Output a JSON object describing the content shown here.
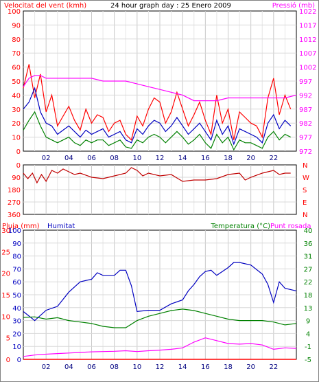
{
  "chart_data": [
    {
      "type": "line",
      "title": "24 hour graph day : 25 Enero 2009",
      "left_axis_label": "Velocitat del vent (kmh)",
      "right_axis_label": "Pressió (mb)",
      "x_ticks": [
        "02",
        "04",
        "06",
        "08",
        "10",
        "12",
        "14",
        "16",
        "18",
        "20",
        "22"
      ],
      "x_range": [
        0,
        24
      ],
      "left_ticks": [
        "0",
        "10",
        "20",
        "30",
        "40",
        "50",
        "60",
        "70",
        "80",
        "90",
        "100"
      ],
      "left_range": [
        0,
        100
      ],
      "right_ticks": [
        "972",
        "977",
        "982",
        "987",
        "992",
        "997",
        "1002",
        "1007",
        "1012",
        "1017",
        "1022"
      ],
      "right_range": [
        972,
        1022
      ],
      "grid": true,
      "colors": {
        "gust": "#ff0000",
        "average": "#0000c0",
        "minimum": "#008000",
        "pressure": "#ff00ff",
        "left_text": "#ff0000",
        "right_text": "#ff00ff"
      },
      "series": [
        {
          "key": "gust",
          "x": [
            0,
            0.5,
            1,
            1.5,
            2,
            2.5,
            3,
            3.5,
            4,
            4.5,
            5,
            5.5,
            6,
            6.5,
            7,
            7.5,
            8,
            8.5,
            9,
            9.5,
            10,
            10.5,
            11,
            11.5,
            12,
            12.5,
            13,
            13.5,
            14,
            14.5,
            15,
            15.5,
            16,
            16.5,
            17,
            17.5,
            18,
            18.5,
            19,
            19.5,
            20,
            20.5,
            21,
            21.5,
            22,
            22.5,
            23,
            23.5
          ],
          "values": [
            45,
            62,
            38,
            55,
            28,
            40,
            18,
            25,
            32,
            22,
            15,
            30,
            20,
            26,
            24,
            14,
            20,
            22,
            12,
            8,
            25,
            18,
            30,
            38,
            35,
            20,
            28,
            42,
            30,
            18,
            26,
            35,
            22,
            12,
            40,
            20,
            30,
            8,
            28,
            24,
            20,
            18,
            10,
            38,
            52,
            26,
            40,
            30
          ]
        },
        {
          "key": "average",
          "x": [
            0,
            0.5,
            1,
            1.5,
            2,
            2.5,
            3,
            3.5,
            4,
            4.5,
            5,
            5.5,
            6,
            6.5,
            7,
            7.5,
            8,
            8.5,
            9,
            9.5,
            10,
            10.5,
            11,
            11.5,
            12,
            12.5,
            13,
            13.5,
            14,
            14.5,
            15,
            15.5,
            16,
            16.5,
            17,
            17.5,
            18,
            18.5,
            19,
            19.5,
            20,
            20.5,
            21,
            21.5,
            22,
            22.5,
            23,
            23.5
          ],
          "values": [
            30,
            35,
            45,
            28,
            20,
            18,
            12,
            15,
            18,
            14,
            10,
            15,
            12,
            14,
            16,
            10,
            12,
            14,
            8,
            6,
            16,
            12,
            18,
            22,
            20,
            14,
            18,
            24,
            18,
            12,
            16,
            20,
            14,
            8,
            22,
            12,
            18,
            5,
            16,
            14,
            12,
            10,
            6,
            20,
            26,
            16,
            22,
            18
          ]
        },
        {
          "key": "minimum",
          "x": [
            0,
            0.5,
            1,
            1.5,
            2,
            2.5,
            3,
            3.5,
            4,
            4.5,
            5,
            5.5,
            6,
            6.5,
            7,
            7.5,
            8,
            8.5,
            9,
            9.5,
            10,
            10.5,
            11,
            11.5,
            12,
            12.5,
            13,
            13.5,
            14,
            14.5,
            15,
            15.5,
            16,
            16.5,
            17,
            17.5,
            18,
            18.5,
            19,
            19.5,
            20,
            20.5,
            21,
            21.5,
            22,
            22.5,
            23,
            23.5
          ],
          "values": [
            15,
            22,
            28,
            18,
            10,
            8,
            6,
            8,
            10,
            6,
            4,
            8,
            6,
            8,
            8,
            4,
            6,
            8,
            3,
            2,
            8,
            6,
            10,
            12,
            10,
            6,
            10,
            14,
            10,
            5,
            8,
            12,
            6,
            2,
            12,
            6,
            10,
            1,
            8,
            6,
            6,
            4,
            2,
            10,
            14,
            8,
            12,
            10
          ]
        },
        {
          "key": "pressure",
          "x": [
            0,
            0.5,
            1,
            1.5,
            2,
            3,
            4,
            5,
            6,
            7,
            8,
            9,
            10,
            11,
            12,
            13,
            14,
            15,
            16,
            17,
            18,
            19,
            20,
            21,
            22,
            23,
            24
          ],
          "values": [
            995,
            998,
            999,
            999,
            998,
            998,
            998,
            998,
            998,
            997,
            997,
            997,
            996,
            995,
            994,
            993,
            992,
            990,
            990,
            990,
            991,
            991,
            991,
            991,
            991,
            991,
            992
          ]
        }
      ]
    },
    {
      "type": "line",
      "title": "",
      "left_ticks": [
        "360",
        "270",
        "180",
        "90",
        "0"
      ],
      "left_range": [
        0,
        360
      ],
      "right_ticks": [
        "N",
        "W",
        "S",
        "E",
        "N"
      ],
      "x_range": [
        0,
        24
      ],
      "grid": true,
      "colors": {
        "direction": "#c00000",
        "left_text": "#ff0000",
        "right_text": "#ff0000"
      },
      "series": [
        {
          "key": "direction",
          "x": [
            0,
            0.4,
            0.8,
            1.2,
            1.6,
            2,
            2.5,
            3,
            3.5,
            4,
            4.5,
            5,
            6,
            7,
            8,
            9,
            9.5,
            10,
            10.5,
            11,
            12,
            13,
            14,
            15,
            16,
            17,
            18,
            19,
            19.5,
            20,
            21,
            22,
            22.5,
            23,
            23.5
          ],
          "values": [
            300,
            260,
            300,
            230,
            290,
            240,
            320,
            300,
            330,
            310,
            290,
            300,
            270,
            260,
            280,
            300,
            340,
            320,
            280,
            300,
            280,
            290,
            240,
            250,
            250,
            260,
            290,
            300,
            250,
            270,
            300,
            320,
            290,
            300,
            300
          ]
        }
      ]
    },
    {
      "type": "line",
      "title": "",
      "left_label_1": "Pluja (mm)",
      "left_label_2": "Humitat",
      "right_label_1": "Temperatura (°C)",
      "right_label_2": "Punt rosada",
      "rain_ticks": [
        "0",
        "5",
        "10",
        "15",
        "20",
        "25",
        "30"
      ],
      "rain_range": [
        0,
        30
      ],
      "humidity_ticks": [
        "0",
        "10",
        "20",
        "30",
        "40",
        "50",
        "60",
        "70",
        "80",
        "90",
        "100"
      ],
      "humidity_range": [
        0,
        100
      ],
      "temp_ticks": [
        "-5",
        "-1",
        "4",
        "9",
        "13",
        "18",
        "22",
        "27",
        "31",
        "36",
        "40"
      ],
      "temp_range": [
        -5,
        40
      ],
      "x_range": [
        0,
        24
      ],
      "grid": true,
      "colors": {
        "rain": "#ff0000",
        "humidity": "#0000c0",
        "temperature": "#008000",
        "dewpoint": "#ff00ff",
        "rain_text": "#ff0000",
        "humidity_text": "#0000c0",
        "temp_text": "#008000",
        "dew_text": "#ff00ff"
      },
      "series": [
        {
          "key": "rain",
          "x": [
            0,
            24
          ],
          "values": [
            0,
            0
          ]
        },
        {
          "key": "humidity",
          "x": [
            0,
            1,
            2,
            3,
            4,
            5,
            6,
            6.5,
            7,
            8,
            8.5,
            9,
            9.5,
            10,
            11,
            12,
            13,
            14,
            14.5,
            15,
            15.5,
            16,
            16.5,
            17,
            18,
            18.5,
            19,
            20,
            21,
            21.5,
            22,
            22.5,
            23,
            24
          ],
          "values": [
            37,
            30,
            38,
            41,
            52,
            60,
            62,
            67,
            65,
            65,
            69,
            69,
            57,
            37,
            38,
            38,
            43,
            46,
            53,
            58,
            64,
            68,
            69,
            65,
            71,
            75,
            75,
            73,
            66,
            58,
            44,
            60,
            55,
            53
          ]
        },
        {
          "key": "temperature",
          "x": [
            0,
            1,
            2,
            3,
            4,
            5,
            6,
            7,
            8,
            9,
            10,
            11,
            12,
            13,
            14,
            15,
            16,
            17,
            18,
            19,
            20,
            21,
            22,
            23,
            24
          ],
          "values": [
            9.6,
            9.8,
            9.0,
            9.5,
            8.5,
            8.0,
            7.5,
            6.5,
            6.0,
            6.0,
            8.5,
            10.0,
            11.0,
            12.0,
            12.5,
            12.0,
            11.0,
            10.0,
            9.0,
            8.5,
            8.5,
            8.5,
            8.0,
            7.0,
            7.5
          ]
        },
        {
          "key": "dewpoint",
          "x": [
            0,
            1,
            2,
            3,
            4,
            5,
            6,
            7,
            8,
            9,
            10,
            11,
            12,
            13,
            14,
            15,
            16,
            17,
            18,
            19,
            20,
            21,
            22,
            23,
            24
          ],
          "values": [
            -4.0,
            -3.5,
            -3.2,
            -3.0,
            -2.8,
            -2.6,
            -2.4,
            -2.3,
            -2.2,
            -2.0,
            -2.3,
            -2.0,
            -1.8,
            -1.5,
            -1.0,
            1.0,
            2.5,
            1.5,
            0.5,
            0.3,
            0.5,
            0.0,
            -1.5,
            -1.0,
            -1.2
          ]
        }
      ]
    }
  ]
}
